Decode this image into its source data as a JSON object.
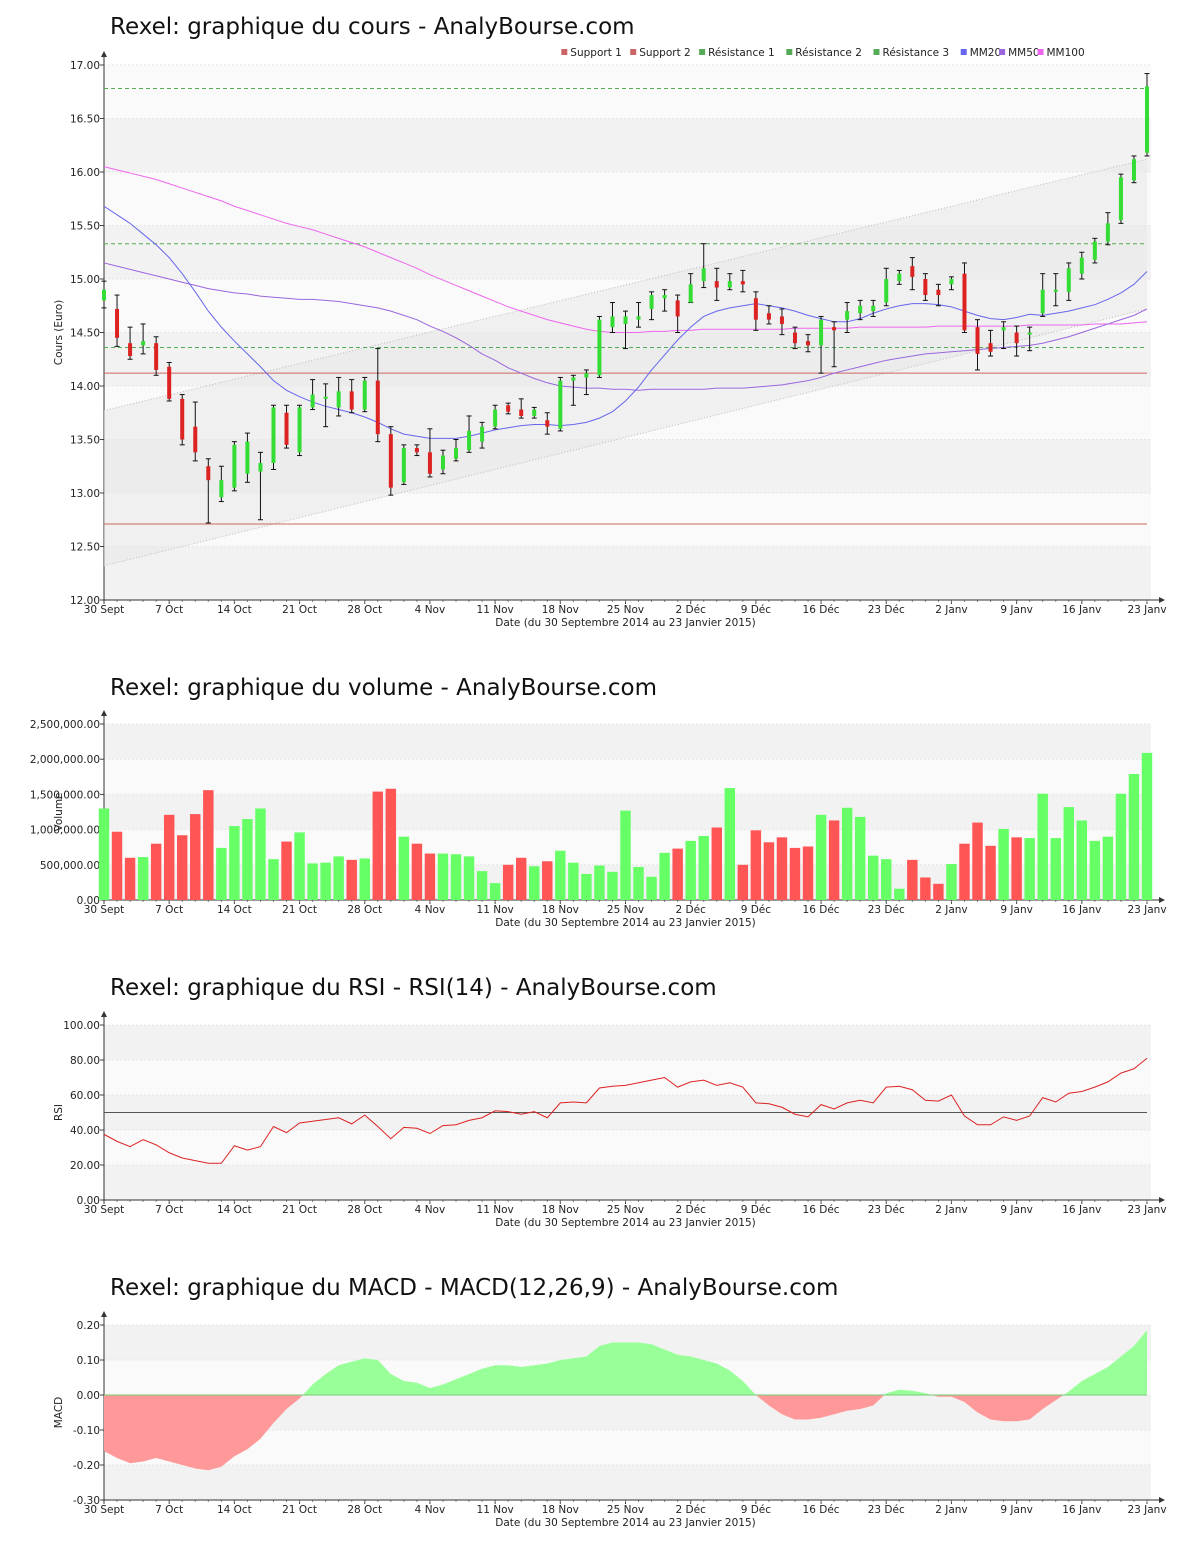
{
  "colors": {
    "up": "#33dd33",
    "down": "#dd2222",
    "vol_up": "#66ff66",
    "vol_down": "#ff5555",
    "support": "#cc6666",
    "resistance": "#55aa55",
    "mm20": "#6666ee",
    "mm50": "#9966dd",
    "mm100": "#ee66ee",
    "rsi": "#dd2222",
    "macd_pos": "#99ff99",
    "macd_neg": "#ff9999",
    "trend": "#bbbbbb"
  },
  "dates_label": "Date (du 30 Septembre 2014 au 23 Janvier 2015)",
  "x_ticks": [
    {
      "label": "30 Sept",
      "i": 0
    },
    {
      "label": "7 Oct",
      "i": 5
    },
    {
      "label": "14 Oct",
      "i": 10
    },
    {
      "label": "21 Oct",
      "i": 15
    },
    {
      "label": "28 Oct",
      "i": 20
    },
    {
      "label": "4 Nov",
      "i": 25
    },
    {
      "label": "11 Nov",
      "i": 30
    },
    {
      "label": "18 Nov",
      "i": 35
    },
    {
      "label": "25 Nov",
      "i": 40
    },
    {
      "label": "2 Déc",
      "i": 45
    },
    {
      "label": "9 Déc",
      "i": 50
    },
    {
      "label": "16 Déc",
      "i": 55
    },
    {
      "label": "23 Déc",
      "i": 60
    },
    {
      "label": "2 Janv",
      "i": 65
    },
    {
      "label": "9 Janv",
      "i": 70
    },
    {
      "label": "16 Janv",
      "i": 75
    },
    {
      "label": "23 Janv",
      "i": 80
    }
  ],
  "chart_data": [
    {
      "id": "price",
      "type": "candlestick",
      "title": "Rexel: graphique du cours - AnalyBourse.com",
      "ylabel": "Cours (Euro)",
      "xlabel": "Date (du 30 Septembre 2014 au 23 Janvier 2015)",
      "ylim": [
        12.0,
        17.0
      ],
      "yticks": [
        "12.00",
        "12.50",
        "13.00",
        "13.50",
        "14.00",
        "14.50",
        "15.00",
        "15.50",
        "16.00",
        "16.50",
        "17.00"
      ],
      "legend": [
        "Support 1",
        "Support 2",
        "Résistance 1",
        "Résistance 2",
        "Résistance 3",
        "MM20",
        "MM50",
        "MM100"
      ],
      "legend_position": "top-right",
      "support": [
        12.71,
        14.12
      ],
      "resistance": [
        14.36,
        15.33,
        16.78
      ],
      "trend_upper": [
        [
          0,
          13.77
        ],
        [
          80,
          16.12
        ]
      ],
      "trend_lower": [
        [
          0,
          12.32
        ],
        [
          80,
          14.72
        ]
      ],
      "candles": [
        {
          "o": 14.8,
          "c": 14.9,
          "h": 14.98,
          "l": 14.73
        },
        {
          "o": 14.72,
          "c": 14.45,
          "h": 14.85,
          "l": 14.37
        },
        {
          "o": 14.4,
          "c": 14.28,
          "h": 14.55,
          "l": 14.25
        },
        {
          "o": 14.38,
          "c": 14.42,
          "h": 14.58,
          "l": 14.3
        },
        {
          "o": 14.4,
          "c": 14.15,
          "h": 14.46,
          "l": 14.1
        },
        {
          "o": 14.18,
          "c": 13.88,
          "h": 14.22,
          "l": 13.86
        },
        {
          "o": 13.88,
          "c": 13.5,
          "h": 13.92,
          "l": 13.45
        },
        {
          "o": 13.62,
          "c": 13.38,
          "h": 13.85,
          "l": 13.3
        },
        {
          "o": 13.25,
          "c": 13.12,
          "h": 13.32,
          "l": 12.72
        },
        {
          "o": 12.96,
          "c": 13.12,
          "h": 13.25,
          "l": 12.92
        },
        {
          "o": 13.05,
          "c": 13.45,
          "h": 13.48,
          "l": 13.02
        },
        {
          "o": 13.18,
          "c": 13.48,
          "h": 13.56,
          "l": 13.1
        },
        {
          "o": 13.2,
          "c": 13.28,
          "h": 13.38,
          "l": 12.75
        },
        {
          "o": 13.28,
          "c": 13.8,
          "h": 13.82,
          "l": 13.22
        },
        {
          "o": 13.75,
          "c": 13.45,
          "h": 13.82,
          "l": 13.42
        },
        {
          "o": 13.38,
          "c": 13.8,
          "h": 13.82,
          "l": 13.35
        },
        {
          "o": 13.8,
          "c": 13.92,
          "h": 14.06,
          "l": 13.78
        },
        {
          "o": 13.88,
          "c": 13.9,
          "h": 14.02,
          "l": 13.62
        },
        {
          "o": 13.8,
          "c": 13.95,
          "h": 14.08,
          "l": 13.72
        },
        {
          "o": 13.95,
          "c": 13.78,
          "h": 14.06,
          "l": 13.75
        },
        {
          "o": 13.78,
          "c": 14.05,
          "h": 14.08,
          "l": 13.76
        },
        {
          "o": 14.05,
          "c": 13.55,
          "h": 14.35,
          "l": 13.48
        },
        {
          "o": 13.55,
          "c": 13.05,
          "h": 13.62,
          "l": 12.98
        },
        {
          "o": 13.1,
          "c": 13.42,
          "h": 13.45,
          "l": 13.08
        },
        {
          "o": 13.42,
          "c": 13.38,
          "h": 13.45,
          "l": 13.35
        },
        {
          "o": 13.38,
          "c": 13.18,
          "h": 13.6,
          "l": 13.15
        },
        {
          "o": 13.22,
          "c": 13.35,
          "h": 13.4,
          "l": 13.18
        },
        {
          "o": 13.32,
          "c": 13.42,
          "h": 13.5,
          "l": 13.3
        },
        {
          "o": 13.4,
          "c": 13.58,
          "h": 13.72,
          "l": 13.38
        },
        {
          "o": 13.48,
          "c": 13.62,
          "h": 13.66,
          "l": 13.42
        },
        {
          "o": 13.62,
          "c": 13.78,
          "h": 13.82,
          "l": 13.6
        },
        {
          "o": 13.82,
          "c": 13.76,
          "h": 13.84,
          "l": 13.74
        },
        {
          "o": 13.78,
          "c": 13.72,
          "h": 13.88,
          "l": 13.7
        },
        {
          "o": 13.72,
          "c": 13.78,
          "h": 13.8,
          "l": 13.7
        },
        {
          "o": 13.68,
          "c": 13.62,
          "h": 13.75,
          "l": 13.55
        },
        {
          "o": 13.6,
          "c": 14.05,
          "h": 14.08,
          "l": 13.58
        },
        {
          "o": 14.05,
          "c": 14.08,
          "h": 14.1,
          "l": 13.82
        },
        {
          "o": 14.08,
          "c": 14.12,
          "h": 14.15,
          "l": 13.92
        },
        {
          "o": 14.1,
          "c": 14.62,
          "h": 14.65,
          "l": 14.08
        },
        {
          "o": 14.55,
          "c": 14.65,
          "h": 14.78,
          "l": 14.5
        },
        {
          "o": 14.58,
          "c": 14.65,
          "h": 14.7,
          "l": 14.35
        },
        {
          "o": 14.62,
          "c": 14.65,
          "h": 14.78,
          "l": 14.55
        },
        {
          "o": 14.72,
          "c": 14.85,
          "h": 14.88,
          "l": 14.62
        },
        {
          "o": 14.82,
          "c": 14.85,
          "h": 14.9,
          "l": 14.7
        },
        {
          "o": 14.8,
          "c": 14.65,
          "h": 14.85,
          "l": 14.5
        },
        {
          "o": 14.78,
          "c": 14.95,
          "h": 15.05,
          "l": 14.78
        },
        {
          "o": 14.98,
          "c": 15.1,
          "h": 15.33,
          "l": 14.92
        },
        {
          "o": 14.98,
          "c": 14.92,
          "h": 15.1,
          "l": 14.8
        },
        {
          "o": 14.92,
          "c": 14.98,
          "h": 15.05,
          "l": 14.9
        },
        {
          "o": 14.98,
          "c": 14.95,
          "h": 15.08,
          "l": 14.88
        },
        {
          "o": 14.82,
          "c": 14.62,
          "h": 14.88,
          "l": 14.52
        },
        {
          "o": 14.68,
          "c": 14.62,
          "h": 14.75,
          "l": 14.58
        },
        {
          "o": 14.65,
          "c": 14.58,
          "h": 14.72,
          "l": 14.48
        },
        {
          "o": 14.5,
          "c": 14.4,
          "h": 14.55,
          "l": 14.35
        },
        {
          "o": 14.42,
          "c": 14.38,
          "h": 14.48,
          "l": 14.32
        },
        {
          "o": 14.38,
          "c": 14.62,
          "h": 14.65,
          "l": 14.12
        },
        {
          "o": 14.55,
          "c": 14.52,
          "h": 14.6,
          "l": 14.18
        },
        {
          "o": 14.62,
          "c": 14.7,
          "h": 14.78,
          "l": 14.5
        },
        {
          "o": 14.68,
          "c": 14.75,
          "h": 14.8,
          "l": 14.62
        },
        {
          "o": 14.7,
          "c": 14.75,
          "h": 14.8,
          "l": 14.65
        },
        {
          "o": 14.78,
          "c": 15.0,
          "h": 15.1,
          "l": 14.75
        },
        {
          "o": 14.98,
          "c": 15.05,
          "h": 15.08,
          "l": 14.95
        },
        {
          "o": 15.12,
          "c": 15.02,
          "h": 15.2,
          "l": 14.9
        },
        {
          "o": 15.0,
          "c": 14.85,
          "h": 15.05,
          "l": 14.8
        },
        {
          "o": 14.9,
          "c": 14.85,
          "h": 14.95,
          "l": 14.75
        },
        {
          "o": 14.95,
          "c": 15.0,
          "h": 15.02,
          "l": 14.9
        },
        {
          "o": 15.05,
          "c": 14.52,
          "h": 15.15,
          "l": 14.5
        },
        {
          "o": 14.55,
          "c": 14.3,
          "h": 14.62,
          "l": 14.15
        },
        {
          "o": 14.4,
          "c": 14.32,
          "h": 14.52,
          "l": 14.28
        },
        {
          "o": 14.52,
          "c": 14.55,
          "h": 14.6,
          "l": 14.35
        },
        {
          "o": 14.5,
          "c": 14.4,
          "h": 14.56,
          "l": 14.28
        },
        {
          "o": 14.48,
          "c": 14.5,
          "h": 14.55,
          "l": 14.33
        },
        {
          "o": 14.68,
          "c": 14.9,
          "h": 15.05,
          "l": 14.65
        },
        {
          "o": 14.88,
          "c": 14.9,
          "h": 15.05,
          "l": 14.75
        },
        {
          "o": 14.88,
          "c": 15.1,
          "h": 15.15,
          "l": 14.8
        },
        {
          "o": 15.05,
          "c": 15.2,
          "h": 15.25,
          "l": 15.0
        },
        {
          "o": 15.18,
          "c": 15.35,
          "h": 15.38,
          "l": 15.15
        },
        {
          "o": 15.35,
          "c": 15.52,
          "h": 15.62,
          "l": 15.32
        },
        {
          "o": 15.55,
          "c": 15.95,
          "h": 15.98,
          "l": 15.52
        },
        {
          "o": 15.92,
          "c": 16.12,
          "h": 16.15,
          "l": 15.9
        },
        {
          "o": 16.18,
          "c": 16.8,
          "h": 16.92,
          "l": 16.15
        }
      ],
      "mm20": [
        15.68,
        15.6,
        15.52,
        15.42,
        15.32,
        15.2,
        15.05,
        14.88,
        14.7,
        14.55,
        14.42,
        14.3,
        14.18,
        14.05,
        13.96,
        13.9,
        13.85,
        13.81,
        13.78,
        13.75,
        13.71,
        13.66,
        13.6,
        13.55,
        13.53,
        13.51,
        13.51,
        13.51,
        13.53,
        13.56,
        13.59,
        13.61,
        13.63,
        13.64,
        13.64,
        13.63,
        13.64,
        13.66,
        13.7,
        13.76,
        13.86,
        13.99,
        14.15,
        14.29,
        14.43,
        14.55,
        14.65,
        14.7,
        14.73,
        14.75,
        14.77,
        14.75,
        14.73,
        14.7,
        14.66,
        14.63,
        14.6,
        14.6,
        14.63,
        14.68,
        14.72,
        14.75,
        14.77,
        14.77,
        14.76,
        14.74,
        14.7,
        14.66,
        14.63,
        14.62,
        14.64,
        14.67,
        14.66,
        14.68,
        14.7,
        14.73,
        14.76,
        14.81,
        14.87,
        14.95,
        15.07
      ],
      "mm50": [
        15.15,
        15.12,
        15.09,
        15.06,
        15.03,
        15.0,
        14.97,
        14.94,
        14.91,
        14.89,
        14.87,
        14.86,
        14.84,
        14.83,
        14.82,
        14.81,
        14.81,
        14.8,
        14.79,
        14.77,
        14.75,
        14.73,
        14.7,
        14.66,
        14.62,
        14.56,
        14.51,
        14.45,
        14.38,
        14.3,
        14.24,
        14.17,
        14.12,
        14.07,
        14.03,
        14.0,
        13.99,
        13.98,
        13.98,
        13.97,
        13.97,
        13.96,
        13.97,
        13.97,
        13.97,
        13.97,
        13.97,
        13.98,
        13.98,
        13.98,
        13.99,
        14.0,
        14.01,
        14.03,
        14.05,
        14.08,
        14.12,
        14.15,
        14.18,
        14.21,
        14.24,
        14.26,
        14.28,
        14.3,
        14.31,
        14.32,
        14.33,
        14.34,
        14.35,
        14.36,
        14.37,
        14.38,
        14.4,
        14.43,
        14.46,
        14.5,
        14.54,
        14.58,
        14.62,
        14.66,
        14.72
      ],
      "mm100": [
        16.05,
        16.02,
        15.99,
        15.96,
        15.93,
        15.89,
        15.85,
        15.81,
        15.77,
        15.73,
        15.68,
        15.64,
        15.6,
        15.56,
        15.52,
        15.49,
        15.46,
        15.42,
        15.38,
        15.34,
        15.3,
        15.25,
        15.2,
        15.15,
        15.1,
        15.04,
        14.99,
        14.94,
        14.89,
        14.84,
        14.79,
        14.74,
        14.7,
        14.66,
        14.62,
        14.59,
        14.56,
        14.53,
        14.51,
        14.5,
        14.5,
        14.5,
        14.51,
        14.51,
        14.52,
        14.52,
        14.53,
        14.53,
        14.53,
        14.53,
        14.53,
        14.53,
        14.53,
        14.54,
        14.54,
        14.54,
        14.54,
        14.54,
        14.55,
        14.55,
        14.55,
        14.55,
        14.55,
        14.55,
        14.56,
        14.56,
        14.56,
        14.56,
        14.56,
        14.56,
        14.56,
        14.57,
        14.57,
        14.57,
        14.57,
        14.57,
        14.58,
        14.58,
        14.58,
        14.59,
        14.6
      ]
    },
    {
      "id": "volume",
      "type": "bar",
      "title": "Rexel: graphique du volume - AnalyBourse.com",
      "ylabel": "Volume",
      "xlabel": "Date (du 30 Septembre 2014 au 23 Janvier 2015)",
      "ylim": [
        0,
        2500000
      ],
      "yticks": [
        "0.00",
        "500,000.00",
        "1,000,000.00",
        "1,500,000.00",
        "2,000,000.00",
        "2,500,000.00"
      ],
      "values": [
        1300000,
        970000,
        600000,
        610000,
        800000,
        1210000,
        920000,
        1220000,
        1560000,
        740000,
        1050000,
        1150000,
        1300000,
        580000,
        830000,
        960000,
        520000,
        530000,
        620000,
        570000,
        590000,
        1540000,
        1580000,
        900000,
        800000,
        660000,
        660000,
        650000,
        620000,
        410000,
        240000,
        500000,
        600000,
        480000,
        550000,
        700000,
        530000,
        370000,
        490000,
        400000,
        1270000,
        470000,
        330000,
        670000,
        730000,
        840000,
        910000,
        1030000,
        1590000,
        500000,
        990000,
        820000,
        890000,
        740000,
        760000,
        1210000,
        1130000,
        1310000,
        1180000,
        630000,
        580000,
        160000,
        570000,
        320000,
        230000,
        510000,
        800000,
        1100000,
        770000,
        1010000,
        890000,
        880000,
        1510000,
        880000,
        1320000,
        1130000,
        840000,
        900000,
        1510000,
        1790000,
        2090000
      ]
    },
    {
      "id": "rsi",
      "type": "line",
      "title": "Rexel: graphique du RSI - RSI(14) - AnalyBourse.com",
      "ylabel": "RSI",
      "xlabel": "Date (du 30 Septembre 2014 au 23 Janvier 2015)",
      "ylim": [
        0,
        100
      ],
      "yticks": [
        "0.00",
        "20.00",
        "40.00",
        "60.00",
        "80.00",
        "100.00"
      ],
      "reference_line": 50,
      "values": [
        37.5,
        33.5,
        30.5,
        34.5,
        31.5,
        27.0,
        24.0,
        22.5,
        21.0,
        21.0,
        31.0,
        28.5,
        30.5,
        42.0,
        38.5,
        44.0,
        45.0,
        46.0,
        47.0,
        43.5,
        48.5,
        42.0,
        35.0,
        41.5,
        41.0,
        38.0,
        42.5,
        43.0,
        45.5,
        47.0,
        51.0,
        50.5,
        49.0,
        50.5,
        47.0,
        55.5,
        56.0,
        55.5,
        64.0,
        65.0,
        65.5,
        67.0,
        68.5,
        70.0,
        64.5,
        67.5,
        68.5,
        65.5,
        67.0,
        64.5,
        55.5,
        55.0,
        53.0,
        49.0,
        47.5,
        54.5,
        52.0,
        55.5,
        57.0,
        55.5,
        64.5,
        65.0,
        63.0,
        57.0,
        56.5,
        60.0,
        48.0,
        43.0,
        43.0,
        47.5,
        45.5,
        48.0,
        58.5,
        56.0,
        61.0,
        62.0,
        64.5,
        67.5,
        72.5,
        75.0,
        81.0
      ]
    },
    {
      "id": "macd",
      "type": "area",
      "title": "Rexel: graphique du MACD - MACD(12,26,9) - AnalyBourse.com",
      "ylabel": "MACD",
      "xlabel": "Date (du 30 Septembre 2014 au 23 Janvier 2015)",
      "ylim": [
        -0.3,
        0.2
      ],
      "yticks": [
        "-0.30",
        "-0.20",
        "-0.10",
        "0.00",
        "0.10",
        "0.20"
      ],
      "values": [
        -0.16,
        -0.18,
        -0.195,
        -0.19,
        -0.18,
        -0.19,
        -0.2,
        -0.21,
        -0.215,
        -0.205,
        -0.175,
        -0.155,
        -0.125,
        -0.08,
        -0.04,
        -0.01,
        0.03,
        0.06,
        0.085,
        0.095,
        0.105,
        0.1,
        0.06,
        0.04,
        0.035,
        0.02,
        0.03,
        0.045,
        0.06,
        0.075,
        0.085,
        0.085,
        0.08,
        0.085,
        0.09,
        0.1,
        0.105,
        0.11,
        0.14,
        0.15,
        0.15,
        0.15,
        0.145,
        0.13,
        0.115,
        0.11,
        0.1,
        0.09,
        0.07,
        0.04,
        0.0,
        -0.03,
        -0.055,
        -0.07,
        -0.07,
        -0.065,
        -0.055,
        -0.045,
        -0.04,
        -0.03,
        0.005,
        0.015,
        0.012,
        0.005,
        -0.005,
        -0.005,
        -0.02,
        -0.05,
        -0.07,
        -0.075,
        -0.075,
        -0.07,
        -0.04,
        -0.015,
        0.01,
        0.04,
        0.06,
        0.08,
        0.11,
        0.14,
        0.185
      ]
    }
  ]
}
